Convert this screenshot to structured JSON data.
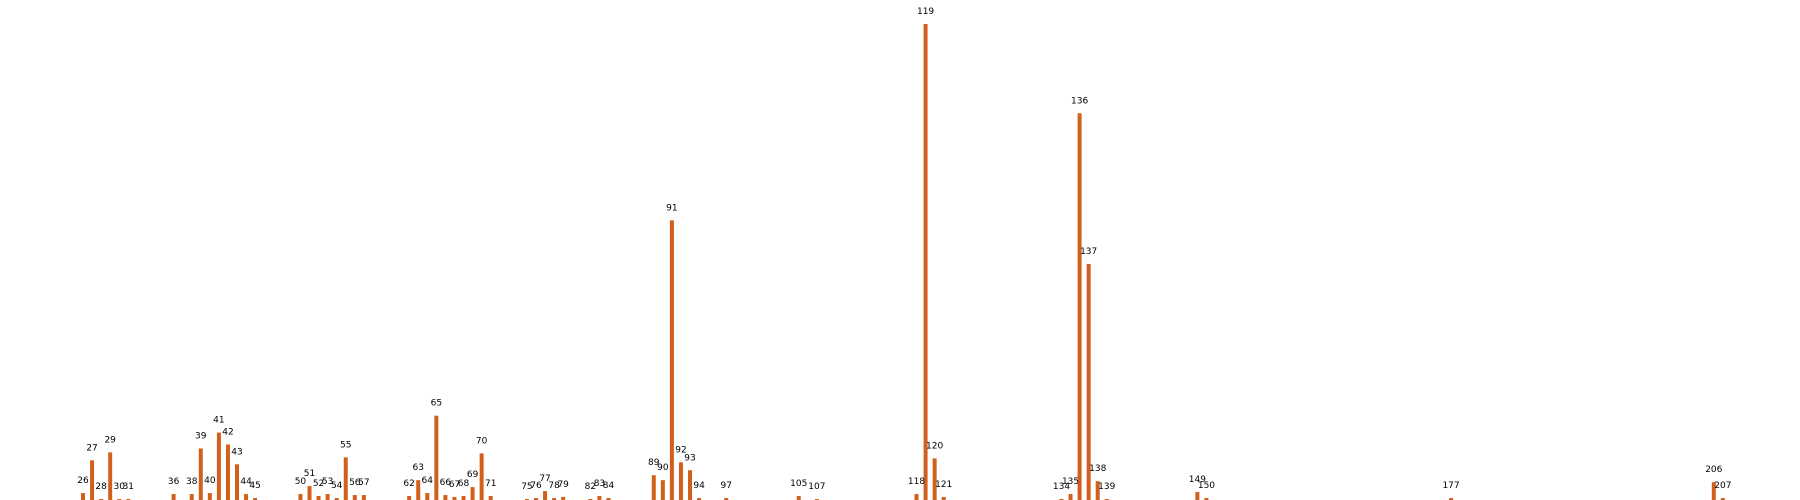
{
  "chart_data": {
    "type": "bar",
    "title": "",
    "xlabel": "",
    "ylabel": "",
    "bar_color": "#d2601a",
    "categories": [
      "26",
      "27",
      "28",
      "29",
      "30",
      "31",
      "36",
      "38",
      "39",
      "40",
      "41",
      "42",
      "43",
      "44",
      "45",
      "50",
      "51",
      "52",
      "53",
      "54",
      "55",
      "56",
      "57",
      "62",
      "63",
      "64",
      "65",
      "66",
      "67",
      "68",
      "69",
      "70",
      "71",
      "75",
      "76",
      "77",
      "78",
      "79",
      "82",
      "83",
      "84",
      "89",
      "90",
      "91",
      "92",
      "93",
      "94",
      "97",
      "105",
      "107",
      "118",
      "119",
      "120",
      "121",
      "134",
      "135",
      "136",
      "137",
      "138",
      "139",
      "149",
      "150",
      "177",
      "206",
      "207"
    ],
    "values": [
      7,
      40,
      1,
      48,
      1,
      1,
      6,
      6,
      52,
      7,
      68,
      56,
      36,
      6,
      2,
      6,
      14,
      4,
      6,
      2,
      43,
      5,
      5,
      4,
      20,
      7,
      85,
      5,
      3,
      4,
      13,
      47,
      4,
      1,
      2,
      9,
      2,
      3,
      1,
      4,
      2,
      25,
      20,
      282,
      38,
      30,
      2,
      2,
      4,
      1,
      6,
      480,
      42,
      3,
      1,
      6,
      390,
      238,
      19,
      1,
      8,
      2,
      2,
      18,
      2
    ],
    "ylim": [
      0,
      480
    ]
  }
}
